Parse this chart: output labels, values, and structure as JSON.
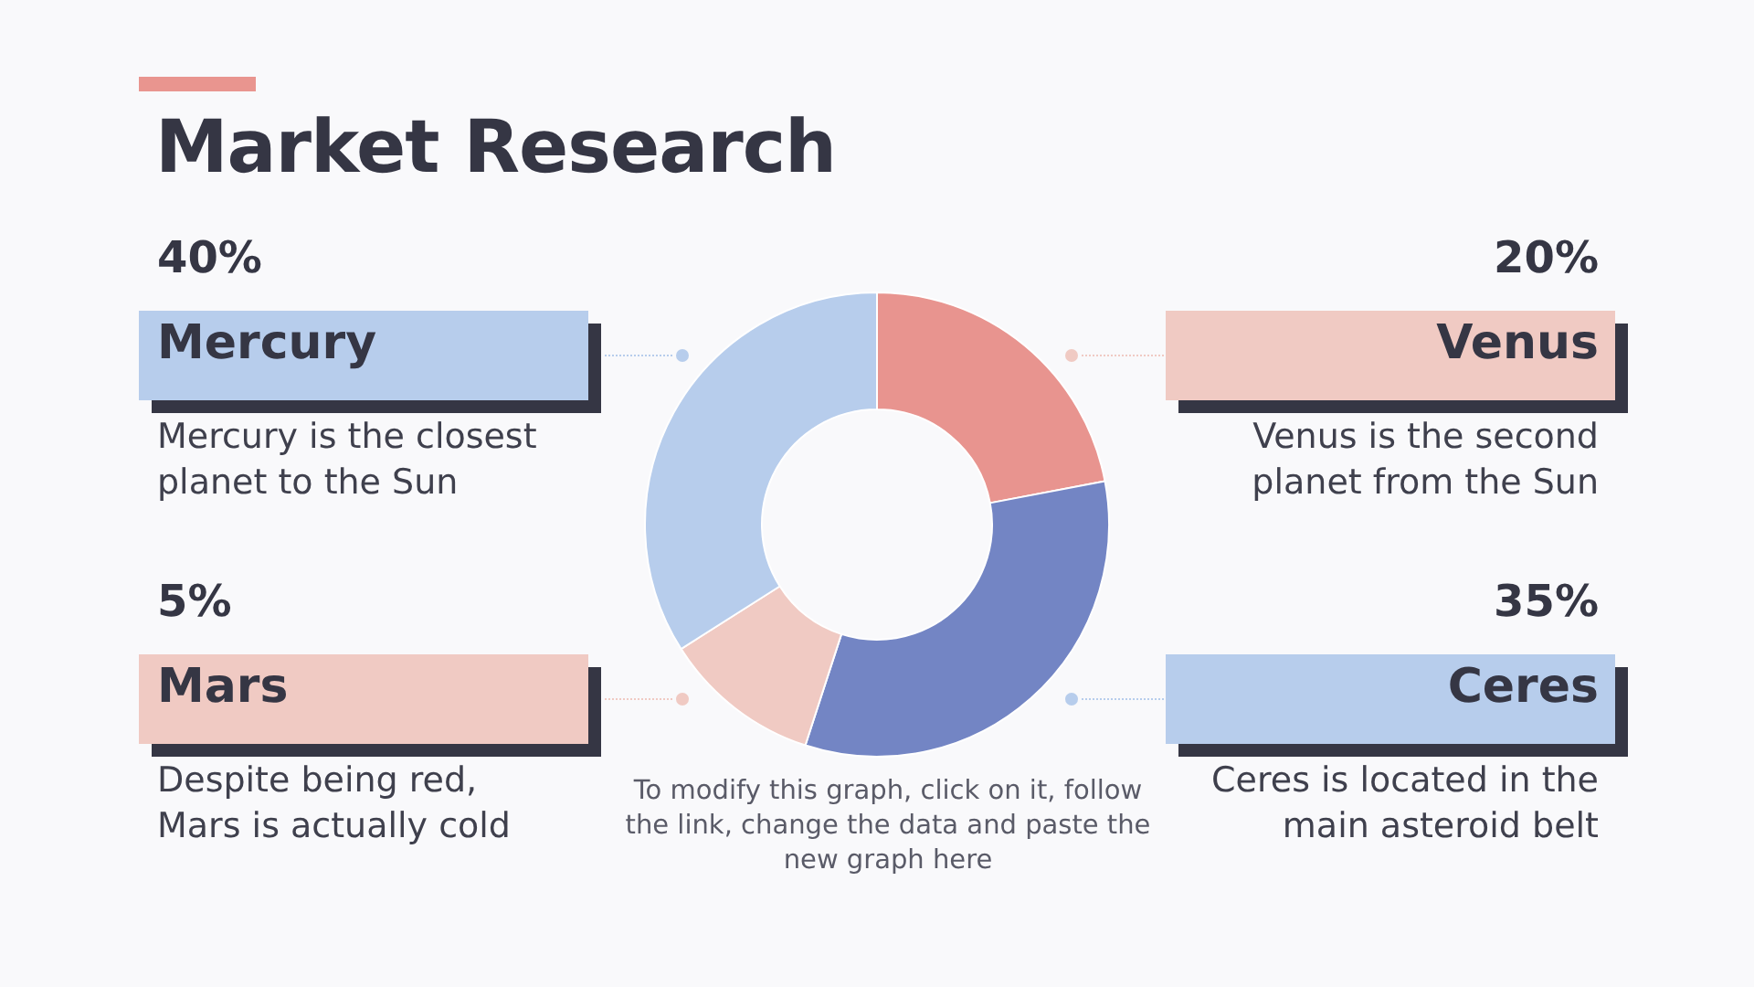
{
  "chart_data": {
    "type": "donut",
    "title": "Market Research",
    "categories": [
      null,
      null,
      null,
      null
    ],
    "values": [
      22,
      33,
      11,
      34
    ],
    "colors": [
      "#e8948f",
      "#7385c4",
      "#f0cac3",
      "#b7cdec"
    ],
    "annotations": [
      "40%",
      "Mercury",
      "Mercury is the closest\nplanet to the Sun",
      "20%",
      "Venus",
      "Venus is the second\nplanet from the Sun",
      "5%",
      "Mars",
      "Despite being red,\nMars is actually cold",
      "35%",
      "Ceres",
      "Ceres is located in the\nmain asteroid belt",
      "To modify this graph, click on it, follow\nthe link, change the data and paste the\nnew graph here"
    ]
  }
}
